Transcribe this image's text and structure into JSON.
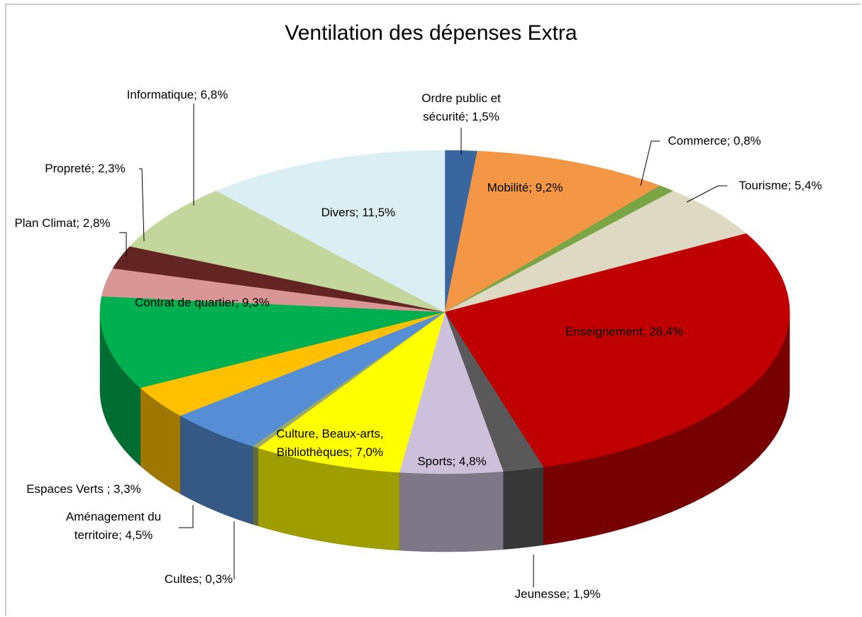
{
  "chart_data": {
    "type": "pie3d",
    "title": "Ventilation des dépenses Extra",
    "values": [
      1.5,
      9.2,
      0.8,
      5.4,
      28.4,
      1.9,
      4.8,
      7.0,
      0.3,
      4.5,
      3.3,
      9.3,
      2.8,
      2.3,
      6.8,
      11.5
    ],
    "value_labels": [
      "Ordre public et sécurité; 1,5%",
      "Mobilité; 9,2%",
      "Commerce; 0,8%",
      "Tourisme; 5,4%",
      "Enseignement; 28,4%",
      "Jeunesse; 1,9%",
      "Sports; 4,8%",
      "Culture, Beaux-arts, Bibliothèques; 7,0%",
      "Cultes; 0,3%",
      "Aménagement du territoire; 4,5%",
      "Espaces Verts ; 3,3%",
      "Contrat de quartier; 9,3%",
      "Plan Climat; 2,8%",
      "Propreté; 2,3%",
      "Informatique; 6,8%",
      "Divers; 11,5%"
    ],
    "colors": [
      "#3a66a0",
      "#f39646",
      "#7aa544",
      "#ddd9c3",
      "#c00000",
      "#595959",
      "#ccc0da",
      "#ffff00",
      "#9aaa6a",
      "#558ed5",
      "#ffc000",
      "#00b050",
      "#d99694",
      "#632523",
      "#c3d69b",
      "#dbeef4"
    ]
  }
}
